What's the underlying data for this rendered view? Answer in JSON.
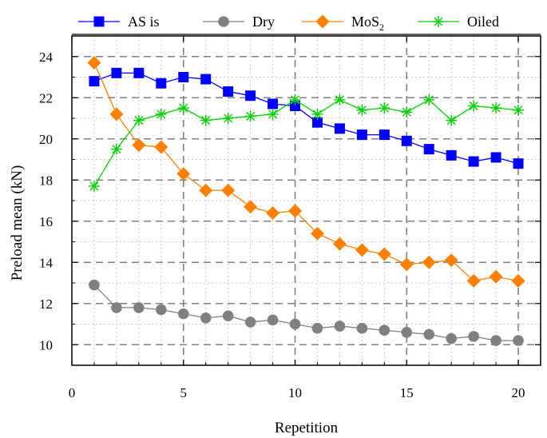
{
  "chart_data": {
    "type": "line",
    "title": "",
    "xlabel": "Repetition",
    "ylabel": "Preload mean (kN)",
    "xlim": [
      0,
      21
    ],
    "ylim": [
      9,
      25
    ],
    "xticks": [
      0,
      5,
      10,
      15,
      20
    ],
    "yticks": [
      10,
      12,
      14,
      16,
      18,
      20,
      22,
      24
    ],
    "grid": true,
    "legend_position": "top",
    "x": [
      1,
      2,
      3,
      4,
      5,
      6,
      7,
      8,
      9,
      10,
      11,
      12,
      13,
      14,
      15,
      16,
      17,
      18,
      19,
      20
    ],
    "series": [
      {
        "name": "AS is",
        "color": "#0000ff",
        "marker": "square",
        "values": [
          22.8,
          23.2,
          23.2,
          22.7,
          23.0,
          22.9,
          22.3,
          22.1,
          21.7,
          21.6,
          20.8,
          20.5,
          20.2,
          20.2,
          19.9,
          19.5,
          19.2,
          18.9,
          19.1,
          18.8
        ]
      },
      {
        "name": "Dry",
        "color": "#808080",
        "marker": "circle",
        "values": [
          12.9,
          11.8,
          11.8,
          11.7,
          11.5,
          11.3,
          11.4,
          11.1,
          11.2,
          11.0,
          10.8,
          10.9,
          10.8,
          10.7,
          10.6,
          10.5,
          10.3,
          10.4,
          10.2,
          10.2
        ]
      },
      {
        "name": "MoS",
        "name_sub": "2",
        "color": "#ff8000",
        "marker": "diamond",
        "values": [
          23.7,
          21.2,
          19.7,
          19.6,
          18.3,
          17.5,
          17.5,
          16.7,
          16.4,
          16.5,
          15.4,
          14.9,
          14.6,
          14.4,
          13.9,
          14.0,
          14.1,
          13.1,
          13.3,
          13.1
        ]
      },
      {
        "name": "Oiled",
        "color": "#00d000",
        "marker": "asterisk",
        "values": [
          17.7,
          19.5,
          20.9,
          21.2,
          21.5,
          20.9,
          21.0,
          21.1,
          21.2,
          21.9,
          21.2,
          21.9,
          21.4,
          21.5,
          21.3,
          21.9,
          20.9,
          21.6,
          21.5,
          21.4
        ]
      }
    ]
  }
}
